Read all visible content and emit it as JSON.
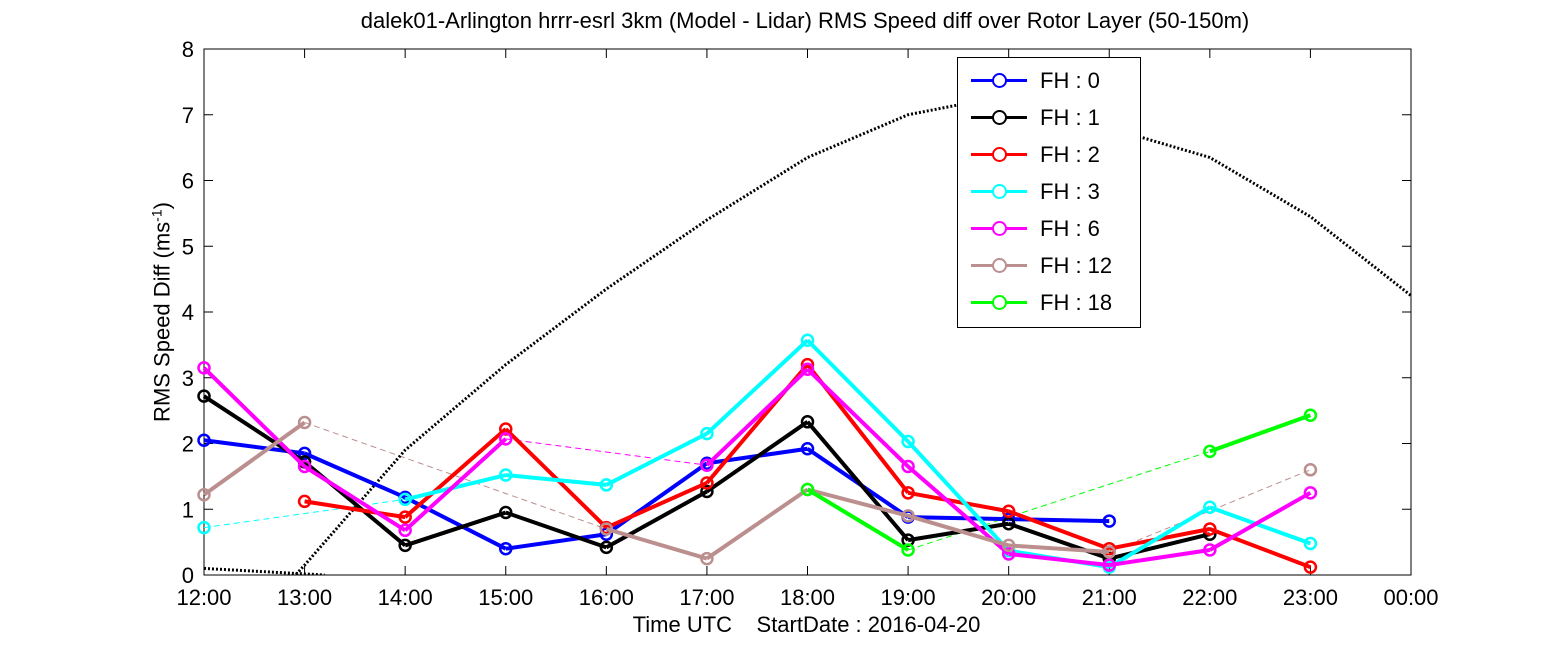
{
  "chart_data": {
    "type": "line",
    "title": "dalek01-Arlington hrrr-esrl 3km (Model - Lidar) RMS Speed diff over Rotor Layer (50-150m)",
    "xlabel": "Time UTC    StartDate : 2016-04-20",
    "ylabel_text": "RMS Speed Diff (ms",
    "ylabel_sup": "-1",
    "ylabel_end": ")",
    "x_ticks": [
      "12:00",
      "13:00",
      "14:00",
      "15:00",
      "16:00",
      "17:00",
      "18:00",
      "19:00",
      "20:00",
      "21:00",
      "22:00",
      "23:00",
      "00:00"
    ],
    "y_ticks": [
      "0",
      "1",
      "2",
      "3",
      "4",
      "5",
      "6",
      "7",
      "8"
    ],
    "xlim": [
      "12:00",
      "00:00"
    ],
    "ylim": [
      0,
      8
    ],
    "legend_position": "top-right",
    "grid": false,
    "series": [
      {
        "name": "FH : 0",
        "color": "#0000ff",
        "values": [
          2.05,
          1.85,
          1.18,
          0.4,
          0.62,
          1.7,
          1.92,
          0.88,
          0.85,
          0.82,
          null,
          null
        ]
      },
      {
        "name": "FH : 1",
        "color": "#000000",
        "values": [
          2.72,
          1.72,
          0.45,
          0.95,
          0.42,
          1.27,
          2.33,
          0.53,
          0.78,
          0.25,
          0.62,
          null
        ]
      },
      {
        "name": "FH : 2",
        "color": "#ff0000",
        "values": [
          null,
          1.12,
          0.88,
          2.22,
          0.72,
          1.4,
          3.2,
          1.25,
          0.97,
          0.4,
          0.7,
          0.12
        ]
      },
      {
        "name": "FH : 3",
        "color": "#00ffff",
        "values": [
          0.72,
          null,
          1.15,
          1.52,
          1.37,
          2.15,
          3.57,
          2.03,
          0.37,
          0.12,
          1.03,
          0.48
        ]
      },
      {
        "name": "FH : 6",
        "color": "#ff00ff",
        "values": [
          3.15,
          1.65,
          0.68,
          2.07,
          null,
          1.67,
          3.13,
          1.65,
          0.32,
          0.15,
          0.38,
          1.25
        ]
      },
      {
        "name": "FH : 12",
        "color": "#bc8f8f",
        "values": [
          1.22,
          2.32,
          null,
          null,
          0.7,
          0.25,
          1.3,
          0.9,
          0.45,
          0.35,
          null,
          1.6
        ]
      },
      {
        "name": "FH : 18",
        "color": "#00ff00",
        "values": [
          null,
          null,
          null,
          null,
          null,
          null,
          1.3,
          0.38,
          null,
          null,
          1.88,
          2.43
        ]
      }
    ],
    "reference_curve": {
      "style": "dotted",
      "color": "#000000",
      "x_hours": [
        12.7,
        13.0,
        14.0,
        15.0,
        16.0,
        17.0,
        18.0,
        19.0,
        19.5,
        20.0,
        21.0,
        22.0,
        23.0,
        24.0
      ],
      "values": [
        -0.35,
        0.15,
        1.9,
        3.2,
        4.35,
        5.4,
        6.35,
        7.0,
        7.15,
        7.1,
        6.8,
        6.35,
        5.45,
        4.25
      ]
    },
    "reference_segment": {
      "style": "dotted",
      "color": "#000000",
      "x_hours": [
        12.0,
        13.2
      ],
      "values": [
        0.1,
        0.0
      ]
    }
  }
}
